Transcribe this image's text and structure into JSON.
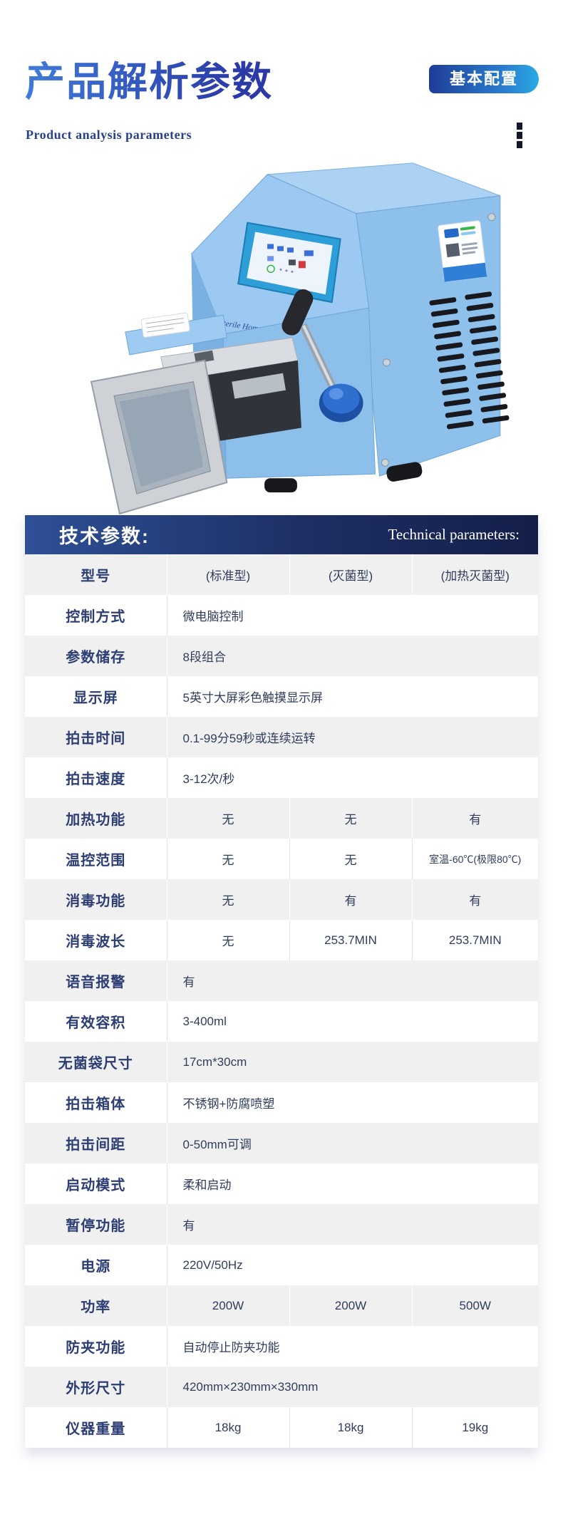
{
  "header": {
    "title": "产品解析参数",
    "subtitle": "Product analysis parameters",
    "badge": "基本配置"
  },
  "product": {
    "panel_text": "Sterile Homogenizer(Stomacher Blender)"
  },
  "table": {
    "title_zh": "技术参数:",
    "title_en": "Technical parameters:",
    "rows": [
      {
        "label": "型号",
        "values": [
          "(标准型)",
          "(灭菌型)",
          "(加热灭菌型)"
        ]
      },
      {
        "label": "控制方式",
        "values": [
          "微电脑控制"
        ]
      },
      {
        "label": "参数储存",
        "values": [
          "8段组合"
        ]
      },
      {
        "label": "显示屏",
        "values": [
          "5英寸大屏彩色触摸显示屏"
        ]
      },
      {
        "label": "拍击时间",
        "values": [
          "0.1-99分59秒或连续运转"
        ]
      },
      {
        "label": "拍击速度",
        "values": [
          "3-12次/秒"
        ]
      },
      {
        "label": "加热功能",
        "values": [
          "无",
          "无",
          "有"
        ]
      },
      {
        "label": "温控范围",
        "values": [
          "无",
          "无",
          "室温-60℃(极限80℃)"
        ]
      },
      {
        "label": "消毒功能",
        "values": [
          "无",
          "有",
          "有"
        ]
      },
      {
        "label": "消毒波长",
        "values": [
          "无",
          "253.7MIN",
          "253.7MIN"
        ]
      },
      {
        "label": "语音报警",
        "values": [
          "有"
        ]
      },
      {
        "label": "有效容积",
        "values": [
          "3-400ml"
        ]
      },
      {
        "label": "无菌袋尺寸",
        "values": [
          "17cm*30cm"
        ]
      },
      {
        "label": "拍击箱体",
        "values": [
          "不锈钢+防腐喷塑"
        ]
      },
      {
        "label": "拍击间距",
        "values": [
          "0-50mm可调"
        ]
      },
      {
        "label": "启动模式",
        "values": [
          "柔和启动"
        ]
      },
      {
        "label": "暂停功能",
        "values": [
          "有"
        ]
      },
      {
        "label": "电源",
        "values": [
          "220V/50Hz"
        ]
      },
      {
        "label": "功率",
        "values": [
          "200W",
          "200W",
          "500W"
        ]
      },
      {
        "label": "防夹功能",
        "values": [
          "自动停止防夹功能"
        ]
      },
      {
        "label": "外形尺寸",
        "values": [
          "420mm×230mm×330mm"
        ]
      },
      {
        "label": "仪器重量",
        "values": [
          "18kg",
          "18kg",
          "19kg"
        ]
      }
    ]
  },
  "colors": {
    "title_gradient_start": "#3f7bd9",
    "title_gradient_end": "#2b3aa6",
    "badge_gradient_start": "#1e3d98",
    "badge_gradient_end": "#29aae4",
    "band_gradient_start": "#2e5097",
    "band_gradient_end": "#141f49",
    "row_alt_gray": "#f0f0f1",
    "machine_body_blue": "#8dc0eb",
    "screen_bezel_cyan": "#2e9ed9"
  }
}
